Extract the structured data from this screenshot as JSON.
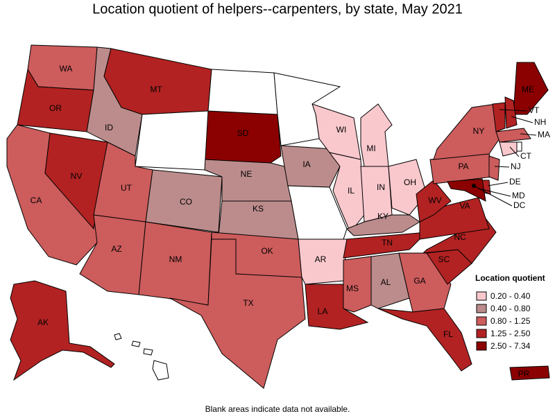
{
  "title": "Location quotient of helpers--carpenters, by state, May 2021",
  "legend": {
    "title": "Location quotient",
    "items": [
      {
        "label": "0.20 - 0.40",
        "color": "#f9c8cd"
      },
      {
        "label": "0.40 - 0.80",
        "color": "#bc8c8c"
      },
      {
        "label": "0.80 - 1.25",
        "color": "#cd5c5c"
      },
      {
        "label": "1.25 - 2.50",
        "color": "#b22222"
      },
      {
        "label": "2.50 - 7.34",
        "color": "#8b0000"
      }
    ]
  },
  "states": [
    {
      "label": "WA",
      "class": 2
    },
    {
      "label": "OR",
      "class": 3
    },
    {
      "label": "CA",
      "class": 2
    },
    {
      "label": "NV",
      "class": 3
    },
    {
      "label": "ID",
      "class": 1
    },
    {
      "label": "MT",
      "class": 3
    },
    {
      "label": "UT",
      "class": 2
    },
    {
      "label": "CO",
      "class": 1
    },
    {
      "label": "AZ",
      "class": 2
    },
    {
      "label": "NM",
      "class": 2
    },
    {
      "label": "SD",
      "class": 4
    },
    {
      "label": "NE",
      "class": 1
    },
    {
      "label": "KS",
      "class": 1
    },
    {
      "label": "OK",
      "class": 2
    },
    {
      "label": "TX",
      "class": 2
    },
    {
      "label": "IA",
      "class": 1
    },
    {
      "label": "AR",
      "class": 0
    },
    {
      "label": "LA",
      "class": 3
    },
    {
      "label": "WI",
      "class": 0
    },
    {
      "label": "IL",
      "class": 0
    },
    {
      "label": "MI",
      "class": 0
    },
    {
      "label": "IN",
      "class": 0
    },
    {
      "label": "OH",
      "class": 0
    },
    {
      "label": "KY",
      "class": 1
    },
    {
      "label": "TN",
      "class": 3
    },
    {
      "label": "MS",
      "class": 2
    },
    {
      "label": "AL",
      "class": 1
    },
    {
      "label": "GA",
      "class": 2
    },
    {
      "label": "FL",
      "class": 3
    },
    {
      "label": "SC",
      "class": 3
    },
    {
      "label": "NC",
      "class": 3
    },
    {
      "label": "VA",
      "class": 3
    },
    {
      "label": "WV",
      "class": 3
    },
    {
      "label": "PA",
      "class": 2
    },
    {
      "label": "NY",
      "class": 2
    },
    {
      "label": "ME",
      "class": 4
    },
    {
      "label": "VT",
      "class": 3
    },
    {
      "label": "NH",
      "class": 3
    },
    {
      "label": "MA",
      "class": 2
    },
    {
      "label": "CT",
      "class": 0
    },
    {
      "label": "NJ",
      "class": 2
    },
    {
      "label": "DE",
      "class": 3
    },
    {
      "label": "MD",
      "class": 4
    },
    {
      "label": "DC",
      "class": 4
    },
    {
      "label": "AK",
      "class": 3
    },
    {
      "label": "PR",
      "class": 4
    }
  ],
  "footnote": "Blank areas indicate data not available."
}
